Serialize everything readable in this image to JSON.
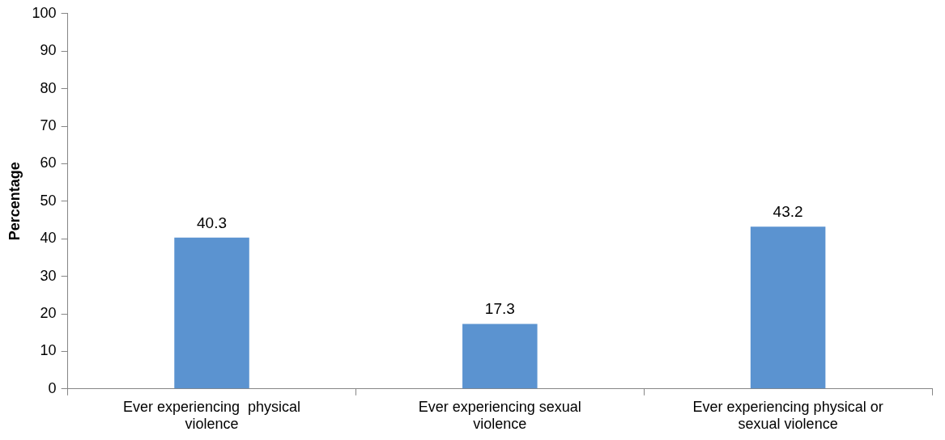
{
  "chart_data": {
    "type": "bar",
    "ylabel": "Percentage",
    "categories": [
      "Ever experiencing  physical violence",
      "Ever experiencing sexual violence",
      "Ever experiencing physical or sexual violence"
    ],
    "values": [
      40.3,
      17.3,
      43.2
    ],
    "color": "#5b93d0",
    "ylim": [
      0,
      100
    ],
    "yticks": [
      0,
      10,
      20,
      30,
      40,
      50,
      60,
      70,
      80,
      90,
      100
    ],
    "grid": false,
    "legend": false,
    "data_labels": true
  }
}
